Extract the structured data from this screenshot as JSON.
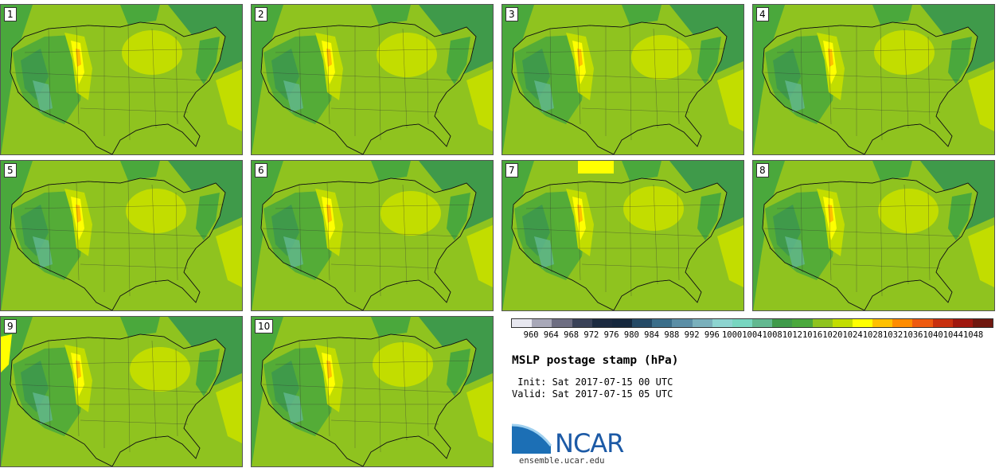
{
  "stamps": [
    "1",
    "2",
    "3",
    "4",
    "5",
    "6",
    "7",
    "8",
    "9",
    "10"
  ],
  "colorbar": {
    "ticks": [
      "960",
      "964",
      "968",
      "972",
      "976",
      "980",
      "984",
      "988",
      "992",
      "996",
      "1000",
      "1004",
      "1008",
      "1012",
      "1016",
      "1020",
      "1024",
      "1028",
      "1032",
      "1036",
      "1040",
      "1044",
      "1048"
    ],
    "colors": [
      "#e8e8f0",
      "#a8a8b8",
      "#6e6e82",
      "#3a4258",
      "#1c2a40",
      "#16283e",
      "#254a66",
      "#3b6e8a",
      "#5b8ea6",
      "#7ab0bc",
      "#8dd4d0",
      "#78d6c0",
      "#62b890",
      "#3f9a4a",
      "#4aa83c",
      "#8fc31f",
      "#c2dd00",
      "#ffff00",
      "#ffc000",
      "#ff8c00",
      "#ee5a10",
      "#c83010",
      "#a01810",
      "#701810"
    ]
  },
  "title": "MSLP postage stamp (hPa)",
  "init": " Init: Sat 2017-07-15 00 UTC",
  "valid": "Valid: Sat 2017-07-15 05 UTC",
  "logo": {
    "name": "NCAR",
    "site": "ensemble.ucar.edu"
  }
}
